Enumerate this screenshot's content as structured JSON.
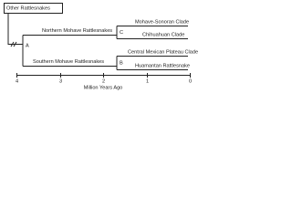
{
  "box_label": "Other Rattlesnakes",
  "branches": {
    "northern": "Northern Mohave Rattlesnakes",
    "southern": "Southern Mohave Rattlesnakes"
  },
  "clades": [
    "Mohave-Sonoran Clade",
    "Chihuahuan Clade",
    "Central Mexican Plateau Clade",
    "Huamantan Rattlesnake"
  ],
  "nodes": [
    "A",
    "B",
    "C"
  ],
  "axis": {
    "label": "Million Years Ago",
    "ticks": [
      4,
      3,
      2,
      1,
      0
    ]
  }
}
